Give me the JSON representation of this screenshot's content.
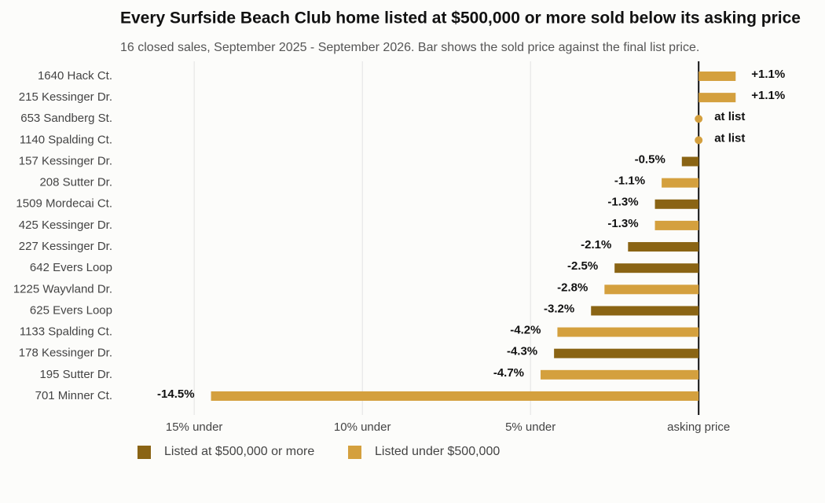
{
  "chart_data": {
    "type": "hbar",
    "title": "Every Surfside Beach Club home listed at $500,000 or more sold below its asking price",
    "subtitle": "16 closed sales, September 2025 - September 2026. Bar shows the sold price against the final list price.",
    "categories": [
      "1640 Hack Ct.",
      "215 Kessinger Dr.",
      "653 Sandberg St.",
      "1140 Spalding Ct.",
      "157 Kessinger Dr.",
      "208 Sutter Dr.",
      "1509 Mordecai Ct.",
      "425 Kessinger Dr.",
      "227 Kessinger Dr.",
      "642 Evers Loop",
      "1225 Wayvland Dr.",
      "625 Evers Loop",
      "1133 Spalding Ct.",
      "178 Kessinger Dr.",
      "195 Sutter Dr.",
      "701 Minner Ct."
    ],
    "series": [
      {
        "name": "Listed at $500,000 or more",
        "color": "#8a6414",
        "values": [
          null,
          null,
          null,
          null,
          -0.5,
          null,
          -1.3,
          null,
          -2.1,
          -2.5,
          null,
          -3.2,
          null,
          -4.3,
          null,
          null
        ],
        "value_labels": [
          null,
          null,
          null,
          null,
          "-0.5%",
          null,
          "-1.3%",
          null,
          "-2.1%",
          "-2.5%",
          null,
          "-3.2%",
          null,
          "-4.3%",
          null,
          null
        ]
      },
      {
        "name": "Listed under $500,000",
        "color": "#d4a03e",
        "values": [
          1.1,
          1.1,
          0,
          0,
          null,
          -1.1,
          null,
          -1.3,
          null,
          null,
          -2.8,
          null,
          -4.2,
          null,
          -4.7,
          -14.5
        ],
        "value_labels": [
          "+1.1%",
          "+1.1%",
          "at list",
          "at list",
          null,
          "-1.1%",
          null,
          "-1.3%",
          null,
          null,
          "-2.8%",
          null,
          "-4.2%",
          null,
          "-4.7%",
          "-14.5%"
        ]
      }
    ],
    "xlim": [
      -17.2,
      3.5
    ],
    "xticks": [
      {
        "value": -15,
        "label": "15% under"
      },
      {
        "value": -10,
        "label": "10% under"
      },
      {
        "value": -5,
        "label": "5% under"
      },
      {
        "value": 0,
        "label": "asking price"
      }
    ],
    "grid": true
  }
}
